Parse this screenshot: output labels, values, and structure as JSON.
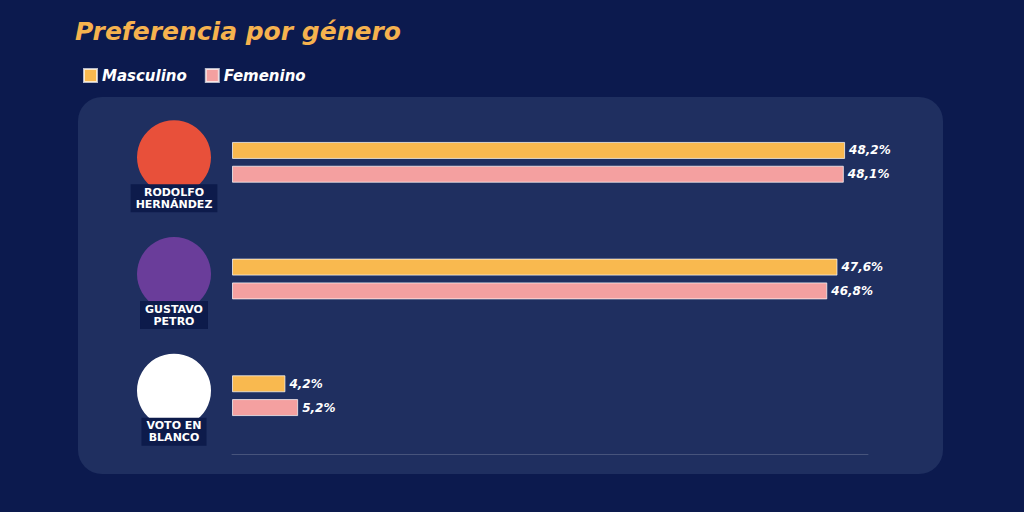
{
  "chart_data": {
    "type": "bar",
    "title": "Preferencia por género",
    "orientation": "horizontal",
    "categories": [
      "RODOLFO\nHERNÁNDEZ",
      "GUSTAVO\nPETRO",
      "VOTO EN\nBLANCO"
    ],
    "series": [
      {
        "name": "Masculino",
        "color": "#f9b94f",
        "values": [
          48.2,
          47.6,
          4.2
        ],
        "value_labels": [
          "48,2%",
          "47,6%",
          "4,2%"
        ]
      },
      {
        "name": "Femenino",
        "color": "#f4a0a0",
        "values": [
          48.1,
          46.8,
          5.2
        ],
        "value_labels": [
          "48,1%",
          "46,8%",
          "5,2%"
        ]
      }
    ],
    "xlim": [
      0,
      50
    ],
    "data_labels": true,
    "tick_labels": false,
    "grid": false,
    "legend": "top-left"
  }
}
